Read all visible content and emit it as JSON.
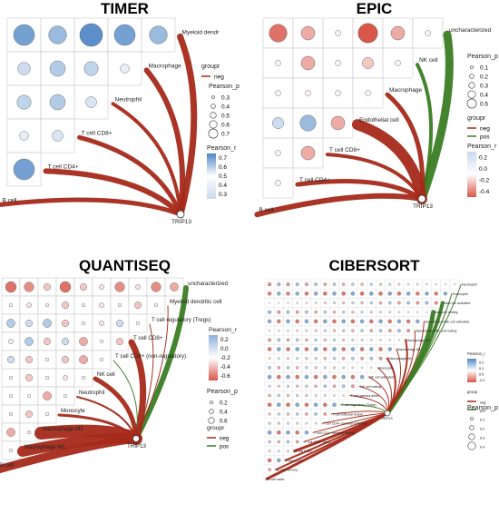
{
  "colors": {
    "neg": "#a52a1a",
    "pos": "#3b7d23",
    "blue": "#4f86c6",
    "red": "#d9564a",
    "grid": "#bfbfbf"
  },
  "panels": [
    {
      "id": "timer",
      "title": "TIMER",
      "hub": "TRIP13",
      "labels": [
        "Myeloid dendr",
        "Macrophage",
        "Neutrophil",
        "T cell CD8+",
        "T cell CD4+",
        "B cell"
      ],
      "corr": [
        [
          0.55,
          0.4,
          0.65,
          0.55,
          0.4
        ],
        [
          0.2,
          0.3,
          0.25,
          0.1
        ],
        [
          0.25,
          0.3,
          0.15
        ],
        [
          0.1,
          0.15
        ],
        [
          0.55
        ]
      ],
      "edges": [
        {
          "type": "neg",
          "w": 7
        },
        {
          "type": "neg",
          "w": 6
        },
        {
          "type": "neg",
          "w": 4
        },
        {
          "type": "neg",
          "w": 5
        },
        {
          "type": "neg",
          "w": 6
        },
        {
          "type": "neg",
          "w": 5
        }
      ],
      "legend": {
        "group_title": "groupr",
        "group_items": [
          "neg"
        ],
        "size_title": "Pearson_p",
        "size_items": [
          "0.3",
          "0.4",
          "0.5",
          "0.6",
          "0.7"
        ],
        "color_title": "Pearson_r",
        "color_ticks": [
          "0.7",
          "0.6",
          "0.5",
          "0.4",
          "0.3"
        ]
      }
    },
    {
      "id": "epic",
      "title": "EPIC",
      "hub": "TRIP13",
      "labels": [
        "uncharacterized",
        "NK cell",
        "Macrophage",
        "Endothelial cell",
        "T cell CD8+",
        "T cell CD4+",
        "B cell"
      ],
      "corr": [
        [
          -0.5,
          -0.3,
          0.05,
          -0.6,
          -0.3,
          0.05
        ],
        [
          0.05,
          -0.3,
          0.05,
          -0.2,
          0.05
        ],
        [
          0.05,
          -0.05,
          0.05,
          0.05
        ],
        [
          0.2,
          0.4,
          -0.3
        ],
        [
          0.05,
          -0.3
        ],
        [
          0.05
        ]
      ],
      "edges": [
        {
          "type": "pos",
          "w": 9
        },
        {
          "type": "pos",
          "w": 4
        },
        {
          "type": "neg",
          "w": 5
        },
        {
          "type": "neg",
          "w": 12
        },
        {
          "type": "neg",
          "w": 4
        },
        {
          "type": "neg",
          "w": 5
        },
        {
          "type": "neg",
          "w": 6
        }
      ],
      "legend": {
        "size_title": "Pearson_p",
        "size_items": [
          "0.1",
          "0.2",
          "0.3",
          "0.4",
          "0.5"
        ],
        "group_title": "groupr",
        "group_items": [
          "neg",
          "pos"
        ],
        "color_title": "Pearson_r",
        "color_ticks": [
          "0.2",
          "0.0",
          "-0.2",
          "-0.4"
        ]
      }
    },
    {
      "id": "quantiseq",
      "title": "QUANTISEQ",
      "hub": "TRIP13",
      "labels": [
        "uncharacterized",
        "Myeloid dendritic cell",
        "T cell regulatory (Tregs)",
        "T cell CD8+",
        "T cell CD4+ (non-regulatory)",
        "NK cell",
        "Neutrophil",
        "Monocyte",
        "Macrophage M2",
        "Macrophage M1",
        "B cell"
      ],
      "corr": [
        [
          -0.5,
          -0.4,
          -0.2,
          -0.5,
          -0.2,
          -0.1,
          -0.4,
          -0.1,
          -0.4,
          -0.3
        ],
        [
          0.05,
          -0.1,
          0.05,
          -0.2,
          0.05,
          -0.1,
          0.05,
          -0.2,
          0.05
        ],
        [
          0.3,
          0.2,
          0.3,
          -0.2,
          0.05,
          -0.1,
          0.2,
          0.05
        ],
        [
          0.1,
          0.3,
          -0.2,
          0.2,
          -0.3,
          0.05,
          -0.2
        ],
        [
          0.2,
          -0.2,
          0.05,
          -0.2,
          -0.3,
          0.05
        ],
        [
          0.05,
          -0.2,
          0.05,
          -0.1,
          0.05
        ],
        [
          0.05,
          0.05,
          -0.3,
          0.05
        ],
        [
          0.05,
          -0.2,
          0.05
        ],
        [
          -0.3,
          0.05
        ],
        [
          0.05
        ]
      ],
      "edges": [
        {
          "type": "pos",
          "w": 6
        },
        {
          "type": "neg",
          "w": 1
        },
        {
          "type": "neg",
          "w": 1
        },
        {
          "type": "neg",
          "w": 7
        },
        {
          "type": "pos",
          "w": 1
        },
        {
          "type": "neg",
          "w": 5
        },
        {
          "type": "neg",
          "w": 2
        },
        {
          "type": "neg",
          "w": 3
        },
        {
          "type": "neg",
          "w": 14
        },
        {
          "type": "neg",
          "w": 12
        },
        {
          "type": "neg",
          "w": 9
        }
      ],
      "legend": {
        "color_title": "Pearson_r",
        "color_ticks": [
          "0.2",
          "0.0",
          "-0.2",
          "-0.4",
          "-0.6"
        ],
        "size_title": "Pearson_p",
        "size_items": [
          "0.2",
          "0.4",
          "0.6"
        ],
        "group_title": "groupr",
        "group_items": [
          "neg",
          "pos"
        ]
      }
    },
    {
      "id": "cibersort",
      "title": "CIBERSORT",
      "hub": "TRIP13",
      "labels": [
        "Neutrophil",
        "Eosinophil",
        "Mast cell activated",
        "Mast cell resting",
        "Myeloid dendritic cell activated",
        "Myeloid dendritic cell resting",
        "Macrophage M2",
        "Macrophage M1",
        "Macrophage M0",
        "Monocyte",
        "NK cell activated",
        "NK cell resting",
        "T cell gamma delta",
        "T cell regulatory (Tregs)",
        "T cell follicular helper",
        "T cell CD4+ memory activated",
        "T cell CD4+ memory resting",
        "T cell CD4+ naive",
        "T cell CD8+",
        "Plasma cell",
        "B cell memory",
        "B cell naive"
      ],
      "edges": [
        {
          "type": "pos",
          "w": 1
        },
        {
          "type": "pos",
          "w": 1
        },
        {
          "type": "pos",
          "w": 4
        },
        {
          "type": "pos",
          "w": 5
        },
        {
          "type": "neg",
          "w": 1
        },
        {
          "type": "neg",
          "w": 1
        },
        {
          "type": "neg",
          "w": 2
        },
        {
          "type": "neg",
          "w": 1
        },
        {
          "type": "neg",
          "w": 2
        },
        {
          "type": "neg",
          "w": 1
        },
        {
          "type": "neg",
          "w": 1
        },
        {
          "type": "neg",
          "w": 1
        },
        {
          "type": "neg",
          "w": 1
        },
        {
          "type": "pos",
          "w": 1
        },
        {
          "type": "neg",
          "w": 1
        },
        {
          "type": "neg",
          "w": 1
        },
        {
          "type": "neg",
          "w": 1
        },
        {
          "type": "neg",
          "w": 1
        },
        {
          "type": "neg",
          "w": 3
        },
        {
          "type": "neg",
          "w": 2
        },
        {
          "type": "neg",
          "w": 2
        },
        {
          "type": "neg",
          "w": 3
        }
      ],
      "legend": {
        "color_title": "Pearson_r",
        "color_ticks": [
          "0.2",
          "0.1",
          "0.0",
          "-0.1"
        ],
        "group_title": "group",
        "group_items": [
          "neg",
          "pos"
        ],
        "size_title": "Pearson_p",
        "size_items": [
          "0.1",
          "0.2",
          "0.3",
          "0.4"
        ]
      }
    }
  ]
}
